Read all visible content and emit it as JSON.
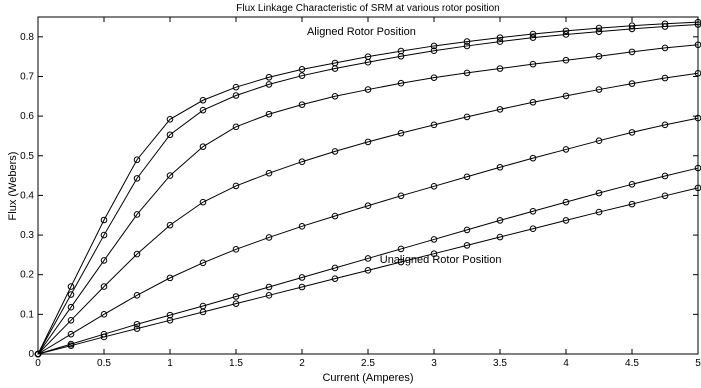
{
  "chart_data": {
    "type": "line",
    "title": "Flux Linkage Characteristic of SRM at various rotor position",
    "xlabel": "Current (Amperes)",
    "ylabel": "Flux (Webers)",
    "xlim": [
      0,
      5
    ],
    "ylim": [
      0,
      0.85
    ],
    "grid": false,
    "x_ticks": [
      "0",
      "0.5",
      "1",
      "1.5",
      "2",
      "2.5",
      "3",
      "3.5",
      "4",
      "4.5",
      "5"
    ],
    "y_ticks": [
      "0",
      "0.1",
      "0.2",
      "0.3",
      "0.4",
      "0.5",
      "0.6",
      "0.7",
      "0.8"
    ],
    "marker": "circle",
    "x": [
      0,
      0.25,
      0.5,
      0.75,
      1,
      1.25,
      1.5,
      1.75,
      2,
      2.25,
      2.5,
      2.75,
      3,
      3.25,
      3.5,
      3.75,
      4,
      4.25,
      4.5,
      4.75,
      5
    ],
    "series": [
      {
        "values": [
          0,
          0.17,
          0.338,
          0.49,
          0.592,
          0.64,
          0.673,
          0.698,
          0.718,
          0.734,
          0.75,
          0.764,
          0.777,
          0.788,
          0.798,
          0.807,
          0.815,
          0.822,
          0.828,
          0.833,
          0.837
        ]
      },
      {
        "values": [
          0,
          0.15,
          0.3,
          0.443,
          0.553,
          0.615,
          0.652,
          0.68,
          0.702,
          0.72,
          0.736,
          0.751,
          0.765,
          0.777,
          0.788,
          0.798,
          0.806,
          0.813,
          0.82,
          0.826,
          0.831
        ]
      },
      {
        "values": [
          0,
          0.118,
          0.236,
          0.352,
          0.45,
          0.523,
          0.573,
          0.605,
          0.629,
          0.65,
          0.667,
          0.683,
          0.697,
          0.709,
          0.72,
          0.731,
          0.741,
          0.751,
          0.762,
          0.772,
          0.78
        ]
      },
      {
        "values": [
          0,
          0.085,
          0.17,
          0.252,
          0.325,
          0.383,
          0.424,
          0.456,
          0.485,
          0.511,
          0.535,
          0.557,
          0.578,
          0.598,
          0.617,
          0.635,
          0.651,
          0.667,
          0.682,
          0.696,
          0.708
        ]
      },
      {
        "values": [
          0,
          0.05,
          0.1,
          0.148,
          0.192,
          0.23,
          0.264,
          0.294,
          0.322,
          0.348,
          0.374,
          0.399,
          0.423,
          0.447,
          0.471,
          0.494,
          0.516,
          0.538,
          0.559,
          0.578,
          0.595
        ]
      },
      {
        "values": [
          0,
          0.025,
          0.05,
          0.075,
          0.098,
          0.121,
          0.145,
          0.169,
          0.193,
          0.217,
          0.241,
          0.265,
          0.289,
          0.313,
          0.337,
          0.36,
          0.383,
          0.406,
          0.428,
          0.449,
          0.469
        ]
      },
      {
        "values": [
          0,
          0.021,
          0.043,
          0.064,
          0.085,
          0.106,
          0.127,
          0.148,
          0.169,
          0.19,
          0.211,
          0.232,
          0.253,
          0.274,
          0.295,
          0.316,
          0.337,
          0.358,
          0.378,
          0.399,
          0.419
        ]
      }
    ],
    "annotations": [
      {
        "text": "Aligned Rotor Position",
        "x": 2.45,
        "y": 0.805
      },
      {
        "text": "Unaligned Rotor Position",
        "x": 3.05,
        "y": 0.23
      }
    ],
    "line_color": "#000000"
  }
}
